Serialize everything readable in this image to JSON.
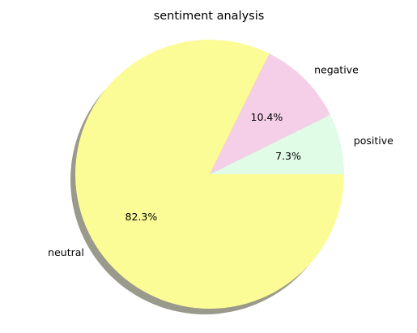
{
  "chart_data": {
    "type": "pie",
    "title": "sentiment analysis",
    "slices": [
      {
        "label": "positive",
        "percent": 7.3,
        "percent_label": "7.3%",
        "color": "#e1fce6"
      },
      {
        "label": "negative",
        "percent": 10.4,
        "percent_label": "10.4%",
        "color": "#f5cfe8"
      },
      {
        "label": "neutral",
        "percent": 82.3,
        "percent_label": "82.3%",
        "color": "#fcfc96"
      }
    ],
    "start_angle_deg": 0,
    "direction": "counterclockwise",
    "shadow": true,
    "legend": "none"
  }
}
